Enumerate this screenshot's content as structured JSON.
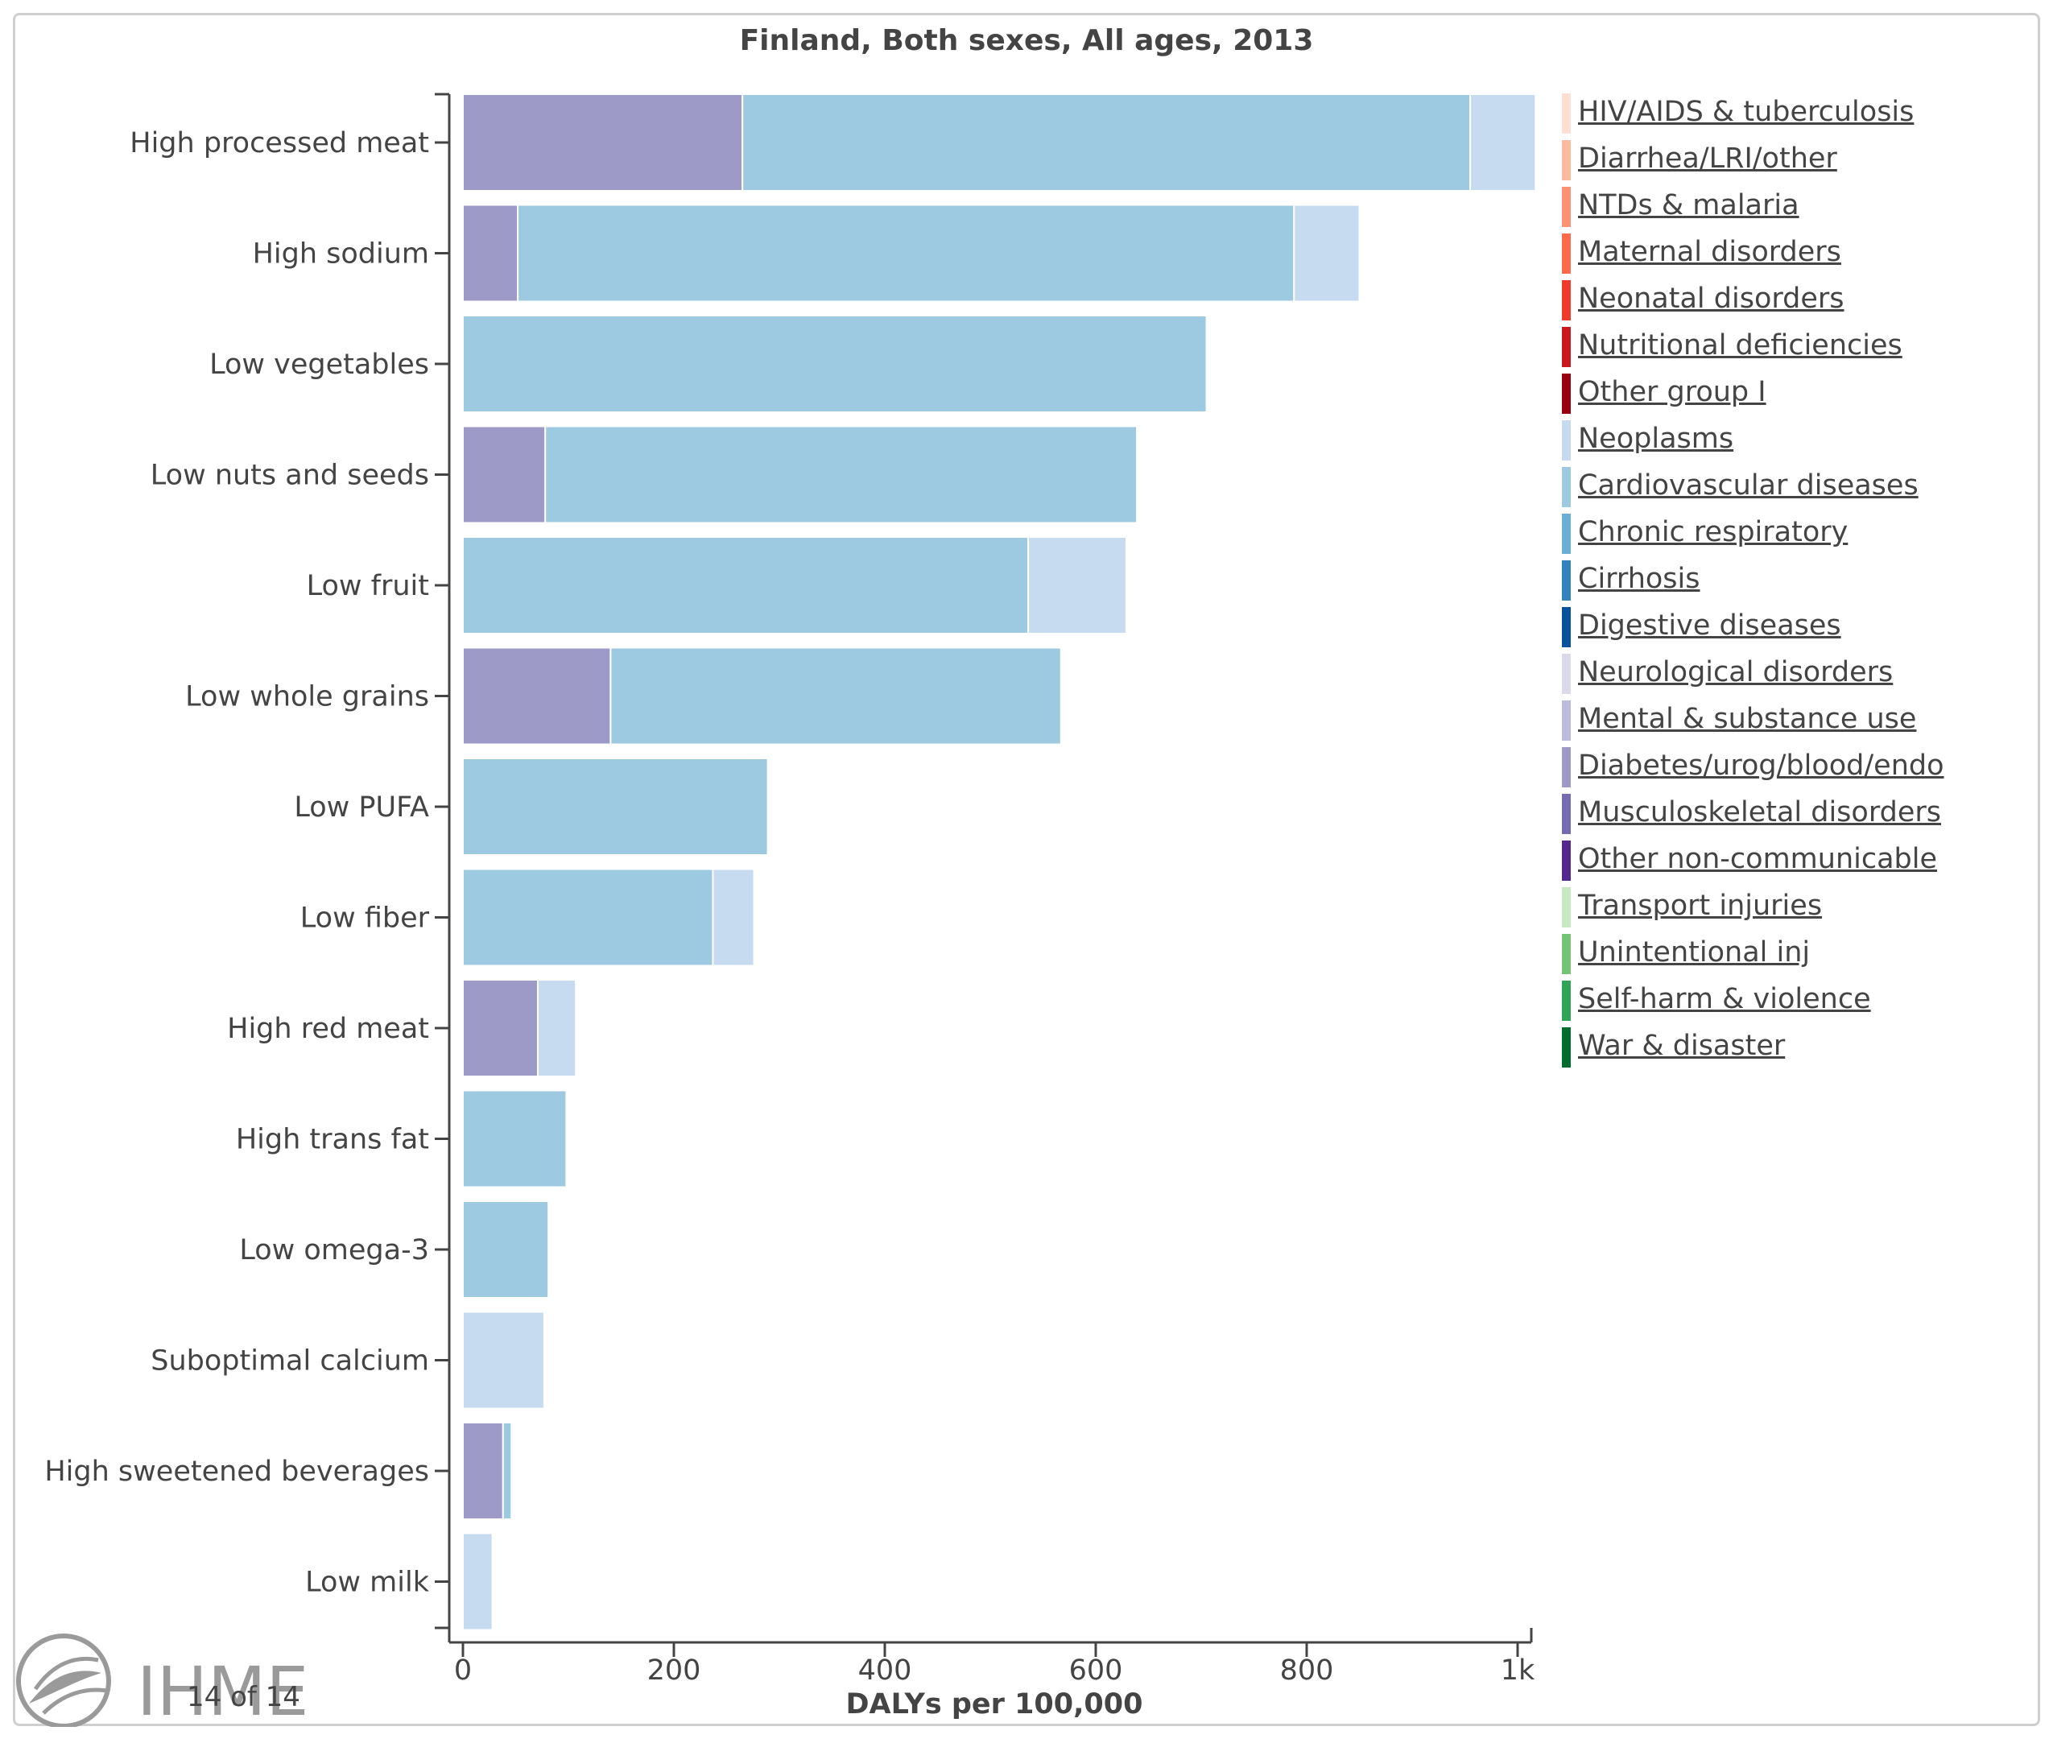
{
  "chart_data": {
    "type": "bar",
    "orientation": "horizontal",
    "stacked": true,
    "title": "Finland, Both sexes, All ages, 2013",
    "xlabel": "DALYs per 100,000",
    "ylabel": "",
    "xlim": [
      0,
      1000
    ],
    "xticks": [
      {
        "value": 0,
        "label": "0"
      },
      {
        "value": 200,
        "label": "200"
      },
      {
        "value": 400,
        "label": "400"
      },
      {
        "value": 600,
        "label": "600"
      },
      {
        "value": 800,
        "label": "800"
      },
      {
        "value": 1000,
        "label": "1k"
      }
    ],
    "categories": [
      "High processed meat",
      "High sodium",
      "Low vegetables",
      "Low nuts and seeds",
      "Low fruit",
      "Low whole grains",
      "Low PUFA",
      "Low fiber",
      "High red meat",
      "High trans fat",
      "Low omega-3",
      "Suboptimal calcium",
      "High sweetened beverages",
      "Low milk"
    ],
    "series": [
      {
        "name": "Diabetes/urog/blood/endo",
        "color": "#9e9ac8",
        "values": [
          265,
          52,
          0,
          78,
          0,
          140,
          0,
          0,
          71,
          0,
          0,
          0,
          38,
          0
        ]
      },
      {
        "name": "Cardiovascular diseases",
        "color": "#9ecae1",
        "values": [
          690,
          736,
          705,
          561,
          536,
          427,
          289,
          237,
          0,
          98,
          81,
          0,
          8,
          0
        ]
      },
      {
        "name": "Neoplasms",
        "color": "#c6dbef",
        "values": [
          62,
          62,
          0,
          0,
          93,
          0,
          0,
          39,
          36,
          0,
          0,
          77,
          0,
          28
        ]
      }
    ],
    "legend": {
      "position": "right",
      "items": [
        {
          "label": "HIV/AIDS & tuberculosis",
          "color": "#fee0d2"
        },
        {
          "label": "Diarrhea/LRI/other",
          "color": "#fcbba1"
        },
        {
          "label": "NTDs & malaria",
          "color": "#fc9272"
        },
        {
          "label": "Maternal disorders",
          "color": "#fb6a4a"
        },
        {
          "label": "Neonatal disorders",
          "color": "#ef3b2c"
        },
        {
          "label": "Nutritional deficiencies",
          "color": "#cb181d"
        },
        {
          "label": "Other group I",
          "color": "#99000d"
        },
        {
          "label": "Neoplasms",
          "color": "#c6dbef"
        },
        {
          "label": "Cardiovascular diseases",
          "color": "#9ecae1"
        },
        {
          "label": "Chronic respiratory",
          "color": "#6baed6"
        },
        {
          "label": "Cirrhosis",
          "color": "#3182bd"
        },
        {
          "label": "Digestive diseases",
          "color": "#08519c"
        },
        {
          "label": "Neurological disorders",
          "color": "#dadaeb"
        },
        {
          "label": "Mental & substance use",
          "color": "#bcbddc"
        },
        {
          "label": "Diabetes/urog/blood/endo",
          "color": "#9e9ac8"
        },
        {
          "label": "Musculoskeletal disorders",
          "color": "#756bb1"
        },
        {
          "label": "Other non-communicable",
          "color": "#54278f"
        },
        {
          "label": "Transport injuries",
          "color": "#c7e9c0"
        },
        {
          "label": "Unintentional inj",
          "color": "#74c476"
        },
        {
          "label": "Self-harm & violence",
          "color": "#31a354"
        },
        {
          "label": "War & disaster",
          "color": "#006d2c"
        }
      ]
    },
    "grid": false
  },
  "footer": {
    "page_counter": "14 of 14",
    "logo_text": "IHME"
  },
  "colors": {
    "axis": "#444444",
    "text": "#444444",
    "frame": "#cfcfcf",
    "logo": "#9a9a9a"
  }
}
